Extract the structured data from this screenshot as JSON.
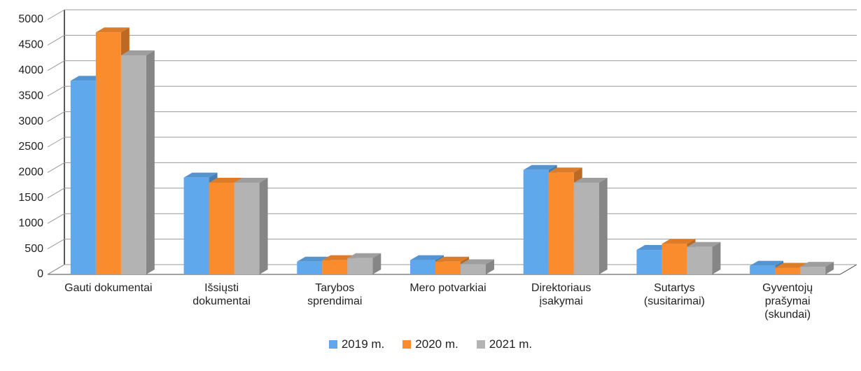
{
  "chart_data": {
    "type": "bar3d",
    "categories": [
      "Gauti dokumentai",
      "Išsiųsti dokumentai",
      "Tarybos sprendimai",
      "Mero potvarkiai",
      "Direktoriaus įsakymai",
      "Sutartys (susitarimai)",
      "Gyventojų prašymai (skundai)"
    ],
    "series": [
      {
        "name": "2019 m.",
        "color": "#5fa8ec",
        "values": [
          3800,
          1900,
          250,
          280,
          2050,
          480,
          170
        ]
      },
      {
        "name": "2020 m.",
        "color": "#fa8c2e",
        "values": [
          4750,
          1800,
          280,
          250,
          2000,
          600,
          130
        ]
      },
      {
        "name": "2021 m.",
        "color": "#b3b3b3",
        "values": [
          4300,
          1800,
          320,
          200,
          1800,
          540,
          150
        ]
      }
    ],
    "ylim": [
      0,
      5000
    ],
    "yticks": [
      0,
      500,
      1000,
      1500,
      2000,
      2500,
      3000,
      3500,
      4000,
      4500,
      5000
    ],
    "grid": true,
    "legend": "bottom"
  }
}
